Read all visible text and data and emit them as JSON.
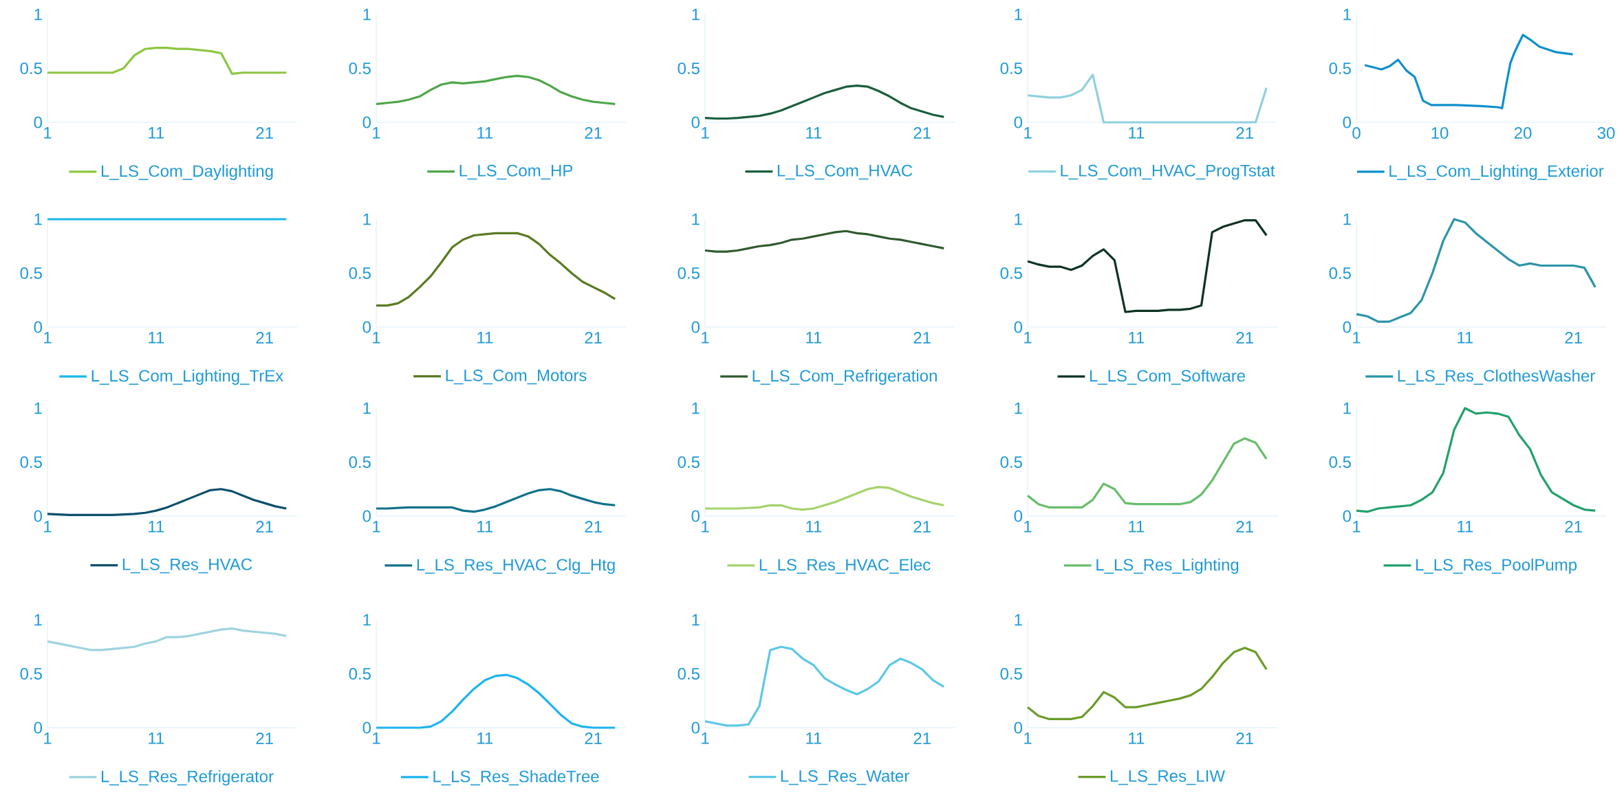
{
  "chart_data": [
    {
      "type": "line",
      "x": [
        1,
        2,
        3,
        4,
        5,
        6,
        7,
        8,
        9,
        10,
        11,
        12,
        13,
        14,
        15,
        16,
        17,
        18,
        19,
        20,
        21,
        22,
        23
      ],
      "xlim": [
        1,
        24
      ],
      "xticks": [
        1,
        11,
        21
      ],
      "ylim": [
        0,
        1
      ],
      "yticks": [
        0,
        0.5,
        1
      ],
      "legend": "bottom",
      "series": [
        {
          "name": "L_LS_Com_Daylighting",
          "color": "#8dc63f",
          "values": [
            0.46,
            0.46,
            0.46,
            0.46,
            0.46,
            0.46,
            0.46,
            0.5,
            0.62,
            0.68,
            0.69,
            0.69,
            0.68,
            0.68,
            0.67,
            0.66,
            0.64,
            0.45,
            0.46,
            0.46,
            0.46,
            0.46,
            0.46
          ]
        }
      ]
    },
    {
      "type": "line",
      "x": [
        1,
        2,
        3,
        4,
        5,
        6,
        7,
        8,
        9,
        10,
        11,
        12,
        13,
        14,
        15,
        16,
        17,
        18,
        19,
        20,
        21,
        22,
        23
      ],
      "xlim": [
        1,
        24
      ],
      "xticks": [
        1,
        11,
        21
      ],
      "ylim": [
        0,
        1
      ],
      "yticks": [
        0,
        0.5,
        1
      ],
      "legend": "bottom",
      "series": [
        {
          "name": "L_LS_Com_HP",
          "color": "#4ea64a",
          "values": [
            0.17,
            0.18,
            0.19,
            0.21,
            0.24,
            0.3,
            0.35,
            0.37,
            0.36,
            0.37,
            0.38,
            0.4,
            0.42,
            0.43,
            0.42,
            0.39,
            0.34,
            0.28,
            0.24,
            0.21,
            0.19,
            0.18,
            0.17
          ]
        }
      ]
    },
    {
      "type": "line",
      "x": [
        1,
        2,
        3,
        4,
        5,
        6,
        7,
        8,
        9,
        10,
        11,
        12,
        13,
        14,
        15,
        16,
        17,
        18,
        19,
        20,
        21,
        22,
        23
      ],
      "xlim": [
        1,
        24
      ],
      "xticks": [
        1,
        11,
        21
      ],
      "ylim": [
        0,
        1
      ],
      "yticks": [
        0,
        0.5,
        1
      ],
      "legend": "bottom",
      "series": [
        {
          "name": "L_LS_Com_HVAC",
          "color": "#1a5e3d",
          "values": [
            0.04,
            0.035,
            0.035,
            0.04,
            0.05,
            0.06,
            0.08,
            0.11,
            0.15,
            0.19,
            0.23,
            0.27,
            0.3,
            0.33,
            0.34,
            0.33,
            0.29,
            0.24,
            0.18,
            0.13,
            0.1,
            0.07,
            0.05
          ]
        }
      ]
    },
    {
      "type": "line",
      "x": [
        1,
        2,
        3,
        4,
        5,
        6,
        7,
        8,
        9,
        10,
        11,
        12,
        13,
        14,
        15,
        16,
        17,
        18,
        19,
        20,
        21,
        22,
        23
      ],
      "xlim": [
        1,
        24
      ],
      "xticks": [
        1,
        11,
        21
      ],
      "ylim": [
        0,
        1
      ],
      "yticks": [
        0,
        0.5,
        1
      ],
      "legend": "bottom",
      "series": [
        {
          "name": "L_LS_Com_HVAC_ProgTstat",
          "color": "#8fd0e0",
          "values": [
            0.25,
            0.24,
            0.23,
            0.23,
            0.25,
            0.3,
            0.44,
            0,
            0,
            0,
            0,
            0,
            0,
            0,
            0,
            0,
            0,
            0,
            0,
            0,
            0,
            0,
            0.32
          ]
        }
      ]
    },
    {
      "type": "line",
      "x": [
        1,
        3,
        4,
        5,
        6,
        7,
        8,
        9,
        12,
        15,
        17,
        17.5,
        18,
        18.5,
        19,
        20,
        21,
        22,
        24,
        26
      ],
      "xlim": [
        0,
        30
      ],
      "xticks": [
        0,
        10,
        20,
        30
      ],
      "ylim": [
        0,
        1
      ],
      "yticks": [
        0,
        0.5,
        1
      ],
      "legend": "bottom",
      "series": [
        {
          "name": "L_LS_Com_Lighting_Exterior",
          "color": "#0e8fcd",
          "values": [
            0.53,
            0.49,
            0.52,
            0.58,
            0.48,
            0.42,
            0.2,
            0.16,
            0.16,
            0.15,
            0.14,
            0.13,
            0.35,
            0.55,
            0.65,
            0.81,
            0.76,
            0.7,
            0.65,
            0.63
          ]
        }
      ]
    },
    {
      "type": "line",
      "x": [
        1,
        2,
        3,
        4,
        5,
        6,
        7,
        8,
        9,
        10,
        11,
        12,
        13,
        14,
        15,
        16,
        17,
        18,
        19,
        20,
        21,
        22,
        23
      ],
      "xlim": [
        1,
        24
      ],
      "xticks": [
        1,
        11,
        21
      ],
      "ylim": [
        0,
        1
      ],
      "yticks": [
        0,
        0.5,
        1
      ],
      "legend": "bottom",
      "series": [
        {
          "name": "L_LS_Com_Lighting_TrEx",
          "color": "#1bb8e8",
          "values": [
            1,
            1,
            1,
            1,
            1,
            1,
            1,
            1,
            1,
            1,
            1,
            1,
            1,
            1,
            1,
            1,
            1,
            1,
            1,
            1,
            1,
            1,
            1
          ]
        }
      ]
    },
    {
      "type": "line",
      "x": [
        1,
        2,
        3,
        4,
        5,
        6,
        7,
        8,
        9,
        10,
        11,
        12,
        13,
        14,
        15,
        16,
        17,
        18,
        19,
        20,
        21,
        22,
        23
      ],
      "xlim": [
        1,
        24
      ],
      "xticks": [
        1,
        11,
        21
      ],
      "ylim": [
        0,
        1
      ],
      "yticks": [
        0,
        0.5,
        1
      ],
      "legend": "bottom",
      "series": [
        {
          "name": "L_LS_Com_Motors",
          "color": "#5b7a22",
          "values": [
            0.2,
            0.2,
            0.22,
            0.28,
            0.37,
            0.47,
            0.6,
            0.74,
            0.81,
            0.85,
            0.86,
            0.87,
            0.87,
            0.87,
            0.84,
            0.77,
            0.67,
            0.59,
            0.5,
            0.42,
            0.37,
            0.32,
            0.26
          ]
        }
      ]
    },
    {
      "type": "line",
      "x": [
        1,
        2,
        3,
        4,
        5,
        6,
        7,
        8,
        9,
        10,
        11,
        12,
        13,
        14,
        15,
        16,
        17,
        18,
        19,
        20,
        21,
        22,
        23
      ],
      "xlim": [
        1,
        24
      ],
      "xticks": [
        1,
        11,
        21
      ],
      "ylim": [
        0,
        1
      ],
      "yticks": [
        0,
        0.5,
        1
      ],
      "legend": "bottom",
      "series": [
        {
          "name": "L_LS_Com_Refrigeration",
          "color": "#2f5a2e",
          "values": [
            0.71,
            0.7,
            0.7,
            0.71,
            0.73,
            0.75,
            0.76,
            0.78,
            0.81,
            0.82,
            0.84,
            0.86,
            0.88,
            0.89,
            0.87,
            0.86,
            0.84,
            0.82,
            0.81,
            0.79,
            0.77,
            0.75,
            0.73
          ]
        }
      ]
    },
    {
      "type": "line",
      "x": [
        1,
        2,
        3,
        4,
        5,
        6,
        7,
        8,
        9,
        10,
        11,
        12,
        13,
        14,
        15,
        16,
        17,
        18,
        19,
        20,
        21,
        22,
        23
      ],
      "xlim": [
        1,
        24
      ],
      "xticks": [
        1,
        11,
        21
      ],
      "ylim": [
        0,
        1
      ],
      "yticks": [
        0,
        0.5,
        1
      ],
      "legend": "bottom",
      "series": [
        {
          "name": "L_LS_Com_Software",
          "color": "#0d3322",
          "values": [
            0.61,
            0.58,
            0.56,
            0.56,
            0.53,
            0.57,
            0.66,
            0.72,
            0.62,
            0.14,
            0.15,
            0.15,
            0.15,
            0.16,
            0.16,
            0.17,
            0.2,
            0.88,
            0.93,
            0.96,
            0.99,
            0.99,
            0.85
          ]
        }
      ]
    },
    {
      "type": "line",
      "x": [
        1,
        2,
        3,
        4,
        5,
        6,
        7,
        8,
        9,
        10,
        11,
        12,
        13,
        14,
        15,
        16,
        17,
        18,
        19,
        20,
        21,
        22,
        23
      ],
      "xlim": [
        1,
        24
      ],
      "xticks": [
        1,
        11,
        21
      ],
      "ylim": [
        0,
        1
      ],
      "yticks": [
        0,
        0.5,
        1
      ],
      "legend": "bottom",
      "series": [
        {
          "name": "L_LS_Res_ClothesWasher",
          "color": "#2a94a8",
          "values": [
            0.12,
            0.1,
            0.05,
            0.05,
            0.09,
            0.13,
            0.25,
            0.5,
            0.8,
            1,
            0.97,
            0.87,
            0.79,
            0.71,
            0.63,
            0.57,
            0.59,
            0.57,
            0.57,
            0.57,
            0.57,
            0.55,
            0.37
          ]
        }
      ]
    },
    {
      "type": "line",
      "x": [
        1,
        2,
        3,
        4,
        5,
        6,
        7,
        8,
        9,
        10,
        11,
        12,
        13,
        14,
        15,
        16,
        17,
        18,
        19,
        20,
        21,
        22,
        23
      ],
      "xlim": [
        1,
        24
      ],
      "xticks": [
        1,
        11,
        21
      ],
      "ylim": [
        0,
        1
      ],
      "yticks": [
        0,
        0.5,
        1
      ],
      "legend": "bottom",
      "series": [
        {
          "name": "L_LS_Res_HVAC",
          "color": "#0b4f6c",
          "values": [
            0.02,
            0.015,
            0.01,
            0.01,
            0.01,
            0.01,
            0.01,
            0.015,
            0.02,
            0.03,
            0.05,
            0.08,
            0.12,
            0.16,
            0.2,
            0.24,
            0.25,
            0.23,
            0.19,
            0.15,
            0.12,
            0.09,
            0.07
          ]
        }
      ]
    },
    {
      "type": "line",
      "x": [
        1,
        2,
        3,
        4,
        5,
        6,
        7,
        8,
        9,
        10,
        11,
        12,
        13,
        14,
        15,
        16,
        17,
        18,
        19,
        20,
        21,
        22,
        23
      ],
      "xlim": [
        1,
        24
      ],
      "xticks": [
        1,
        11,
        21
      ],
      "ylim": [
        0,
        1
      ],
      "yticks": [
        0,
        0.5,
        1
      ],
      "legend": "bottom",
      "series": [
        {
          "name": "L_LS_Res_HVAC_Clg_Htg",
          "color": "#0f7189",
          "values": [
            0.07,
            0.07,
            0.075,
            0.08,
            0.08,
            0.08,
            0.08,
            0.08,
            0.05,
            0.04,
            0.06,
            0.09,
            0.13,
            0.17,
            0.21,
            0.24,
            0.25,
            0.23,
            0.19,
            0.16,
            0.13,
            0.11,
            0.1
          ]
        }
      ]
    },
    {
      "type": "line",
      "x": [
        1,
        2,
        3,
        4,
        5,
        6,
        7,
        8,
        9,
        10,
        11,
        12,
        13,
        14,
        15,
        16,
        17,
        18,
        19,
        20,
        21,
        22,
        23
      ],
      "xlim": [
        1,
        24
      ],
      "xticks": [
        1,
        11,
        21
      ],
      "ylim": [
        0,
        1
      ],
      "yticks": [
        0,
        0.5,
        1
      ],
      "legend": "bottom",
      "series": [
        {
          "name": "L_LS_Res_HVAC_Elec",
          "color": "#a4d36b",
          "values": [
            0.07,
            0.07,
            0.07,
            0.07,
            0.075,
            0.08,
            0.1,
            0.1,
            0.07,
            0.06,
            0.07,
            0.1,
            0.13,
            0.17,
            0.21,
            0.25,
            0.27,
            0.26,
            0.22,
            0.18,
            0.15,
            0.12,
            0.1
          ]
        }
      ]
    },
    {
      "type": "line",
      "x": [
        1,
        2,
        3,
        4,
        5,
        6,
        7,
        8,
        9,
        10,
        11,
        12,
        13,
        14,
        15,
        16,
        17,
        18,
        19,
        20,
        21,
        22,
        23
      ],
      "xlim": [
        1,
        24
      ],
      "xticks": [
        1,
        11,
        21
      ],
      "ylim": [
        0,
        1
      ],
      "yticks": [
        0,
        0.5,
        1
      ],
      "legend": "bottom",
      "series": [
        {
          "name": "L_LS_Res_Lighting",
          "color": "#67bd6a",
          "values": [
            0.19,
            0.11,
            0.08,
            0.08,
            0.08,
            0.08,
            0.15,
            0.3,
            0.25,
            0.12,
            0.11,
            0.11,
            0.11,
            0.11,
            0.11,
            0.13,
            0.2,
            0.33,
            0.5,
            0.67,
            0.72,
            0.68,
            0.53
          ]
        }
      ]
    },
    {
      "type": "line",
      "x": [
        1,
        2,
        3,
        4,
        5,
        6,
        7,
        8,
        9,
        10,
        11,
        12,
        13,
        14,
        15,
        16,
        17,
        18,
        19,
        20,
        21,
        22,
        23
      ],
      "xlim": [
        1,
        24
      ],
      "xticks": [
        1,
        11,
        21
      ],
      "ylim": [
        0,
        1
      ],
      "yticks": [
        0,
        0.5,
        1
      ],
      "legend": "bottom",
      "series": [
        {
          "name": "L_LS_Res_PoolPump",
          "color": "#22a06b",
          "values": [
            0.05,
            0.04,
            0.07,
            0.08,
            0.09,
            0.1,
            0.15,
            0.22,
            0.4,
            0.8,
            1,
            0.95,
            0.96,
            0.95,
            0.92,
            0.75,
            0.62,
            0.38,
            0.22,
            0.16,
            0.1,
            0.06,
            0.05
          ]
        }
      ]
    },
    {
      "type": "line",
      "x": [
        1,
        2,
        3,
        4,
        5,
        6,
        7,
        8,
        9,
        10,
        11,
        12,
        13,
        14,
        15,
        16,
        17,
        18,
        19,
        20,
        21,
        22,
        23
      ],
      "xlim": [
        1,
        24
      ],
      "xticks": [
        1,
        11,
        21
      ],
      "ylim": [
        0,
        1
      ],
      "yticks": [
        0,
        0.5,
        1
      ],
      "legend": "bottom",
      "series": [
        {
          "name": "L_LS_Res_Refrigerator",
          "color": "#9dd3e0",
          "values": [
            0.8,
            0.78,
            0.76,
            0.74,
            0.72,
            0.72,
            0.73,
            0.74,
            0.75,
            0.78,
            0.8,
            0.84,
            0.84,
            0.85,
            0.87,
            0.89,
            0.91,
            0.92,
            0.9,
            0.89,
            0.88,
            0.87,
            0.85
          ]
        }
      ]
    },
    {
      "type": "line",
      "x": [
        1,
        2,
        3,
        4,
        5,
        6,
        7,
        8,
        9,
        10,
        11,
        12,
        13,
        14,
        15,
        16,
        17,
        18,
        19,
        20,
        21,
        22,
        23
      ],
      "xlim": [
        1,
        24
      ],
      "xticks": [
        1,
        11,
        21
      ],
      "ylim": [
        0,
        1
      ],
      "yticks": [
        0,
        0.5,
        1
      ],
      "legend": "bottom",
      "series": [
        {
          "name": "L_LS_Res_ShadeTree",
          "color": "#1cb4ef",
          "values": [
            0,
            0,
            0,
            0,
            0,
            0.01,
            0.06,
            0.15,
            0.26,
            0.36,
            0.44,
            0.48,
            0.49,
            0.46,
            0.4,
            0.32,
            0.22,
            0.12,
            0.04,
            0.01,
            0,
            0,
            0
          ]
        }
      ]
    },
    {
      "type": "line",
      "x": [
        1,
        2,
        3,
        4,
        5,
        6,
        7,
        8,
        9,
        10,
        11,
        12,
        13,
        14,
        15,
        16,
        17,
        18,
        19,
        20,
        21,
        22,
        23
      ],
      "xlim": [
        1,
        24
      ],
      "xticks": [
        1,
        11,
        21
      ],
      "ylim": [
        0,
        1
      ],
      "yticks": [
        0,
        0.5,
        1
      ],
      "legend": "bottom",
      "series": [
        {
          "name": "L_LS_Res_Water",
          "color": "#5cc8e6",
          "values": [
            0.06,
            0.04,
            0.02,
            0.02,
            0.03,
            0.2,
            0.72,
            0.75,
            0.73,
            0.64,
            0.58,
            0.46,
            0.4,
            0.35,
            0.31,
            0.36,
            0.43,
            0.58,
            0.64,
            0.6,
            0.54,
            0.44,
            0.38
          ]
        }
      ]
    },
    {
      "type": "line",
      "x": [
        1,
        2,
        3,
        4,
        5,
        6,
        7,
        8,
        9,
        10,
        11,
        12,
        13,
        14,
        15,
        16,
        17,
        18,
        19,
        20,
        21,
        22,
        23
      ],
      "xlim": [
        1,
        24
      ],
      "xticks": [
        1,
        11,
        21
      ],
      "ylim": [
        0,
        1
      ],
      "yticks": [
        0,
        0.5,
        1
      ],
      "legend": "bottom",
      "series": [
        {
          "name": "L_LS_Res_LIW",
          "color": "#6b9c2a",
          "values": [
            0.19,
            0.11,
            0.08,
            0.08,
            0.08,
            0.1,
            0.2,
            0.33,
            0.28,
            0.19,
            0.19,
            0.21,
            0.23,
            0.25,
            0.27,
            0.3,
            0.36,
            0.47,
            0.6,
            0.7,
            0.74,
            0.7,
            0.54
          ]
        }
      ]
    }
  ]
}
